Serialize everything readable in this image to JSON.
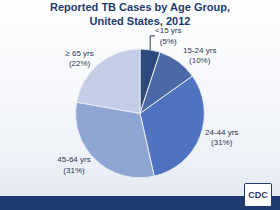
{
  "chart_data": {
    "type": "pie",
    "title": "Reported TB Cases by Age Group, United States, 2012",
    "categories": [
      "<15 yrs",
      "15-24 yrs",
      "24-44 yrs",
      "45-64 yrs",
      "≥ 65 yrs"
    ],
    "values": [
      5,
      10,
      31,
      31,
      22
    ],
    "value_labels": [
      "(5%)",
      "(10%)",
      "(31%)",
      "(31%)",
      "(22%)"
    ],
    "colors": [
      "#2e4a7c",
      "#4b69a6",
      "#4f73c0",
      "#8fa6d5",
      "#c3cee6"
    ],
    "data_labels": true,
    "logo_text": "CDC"
  }
}
